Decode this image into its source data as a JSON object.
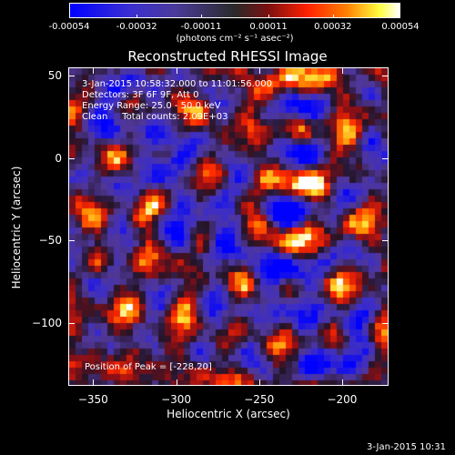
{
  "colorbar": {
    "tick_labels": [
      "-0.00054",
      "-0.00032",
      "-0.00011",
      "0.00011",
      "0.00032",
      "0.00054"
    ],
    "tick_values": [
      -0.00054,
      -0.00032,
      -0.00011,
      0.00011,
      0.00032,
      0.00054
    ],
    "unit_label": "(photons cm⁻² s⁻¹ asec⁻²)",
    "colors": [
      "#0000ff",
      "#3a2fd2",
      "#2a2a2a",
      "#ff2000",
      "#ffff40",
      "#ffffff"
    ]
  },
  "chart_data": {
    "type": "heatmap",
    "title": "Reconstructed RHESSI Image",
    "xlabel": "Heliocentric X (arcsec)",
    "ylabel": "Heliocentric Y (arcsec)",
    "xlim": [
      -365,
      -172
    ],
    "ylim": [
      -138,
      55
    ],
    "x_ticks": [
      -350,
      -300,
      -250,
      -200
    ],
    "x_tick_labels": [
      "−350",
      "−300",
      "−250",
      "−200"
    ],
    "y_ticks": [
      -100,
      -50,
      0,
      50
    ],
    "y_tick_labels": [
      "−100",
      "−50",
      "0",
      "50"
    ],
    "peak": {
      "x": -228,
      "y": 20
    },
    "annotations": [
      "3-Jan-2015 10:58:32.000 to 11:01:56.000",
      "Detectors: 3F 6F 9F, Att 0",
      "Energy Range: 25.0 - 50.0 keV",
      "Clean     Total counts: 2.09E+03",
      "Position of Peak = [-228,20]"
    ]
  },
  "footer": {
    "date": "3-Jan-2015 10:31"
  }
}
